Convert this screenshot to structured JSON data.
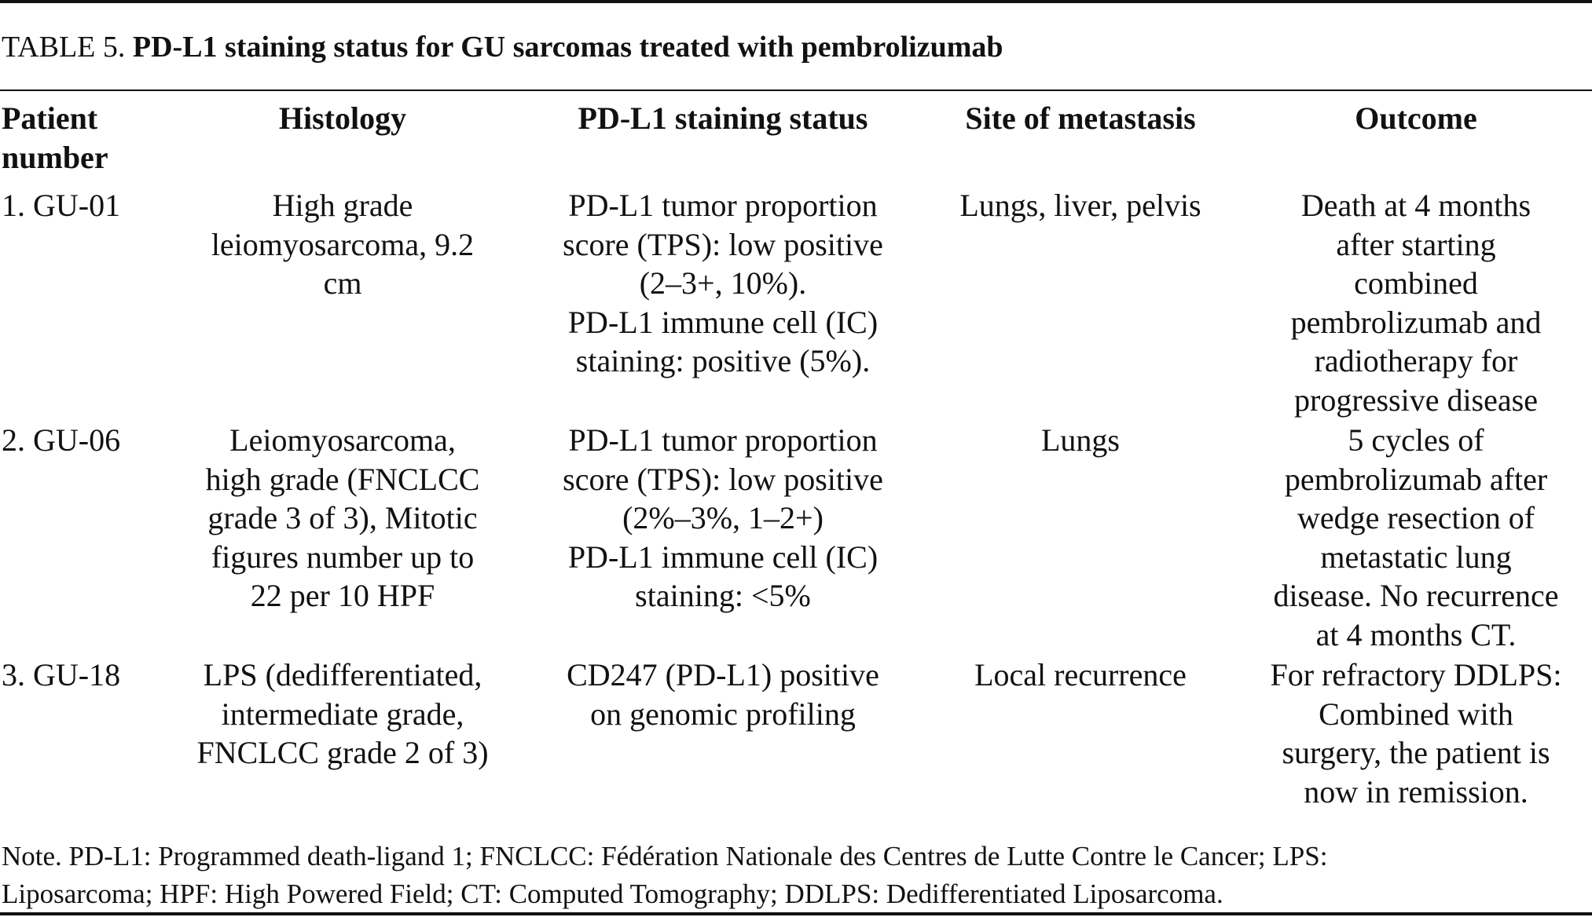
{
  "table_label": "TABLE 5.",
  "table_title": "PD-L1 staining status for GU sarcomas treated with pembrolizumab",
  "headers": {
    "patient_number": [
      "Patient",
      "number"
    ],
    "histology": "Histology",
    "pdl1_status": "PD-L1 staining status",
    "site_of_metastasis": "Site of metastasis",
    "outcome": "Outcome"
  },
  "rows": [
    {
      "patient_number": "1. GU-01",
      "histology": [
        "High grade",
        "leiomyosarcoma, 9.2",
        "cm"
      ],
      "pdl1_status": [
        "PD-L1 tumor proportion",
        "score (TPS): low positive",
        "(2–3+, 10%).",
        "PD-L1 immune cell (IC)",
        "staining: positive (5%)."
      ],
      "site_of_metastasis": "Lungs, liver, pelvis",
      "outcome": [
        "Death at 4 months",
        "after starting",
        "combined",
        "pembrolizumab and",
        "radiotherapy for",
        "progressive disease"
      ]
    },
    {
      "patient_number": "2. GU-06",
      "histology": [
        "Leiomyosarcoma,",
        "high grade (FNCLCC",
        "grade 3 of 3), Mitotic",
        "figures number up to",
        "22 per 10 HPF"
      ],
      "pdl1_status": [
        "PD-L1 tumor proportion",
        "score (TPS): low positive",
        "(2%–3%, 1–2+)",
        "PD-L1 immune cell (IC)",
        "staining: <5%"
      ],
      "site_of_metastasis": "Lungs",
      "outcome": [
        "5 cycles of",
        "pembrolizumab after",
        "wedge resection of",
        "metastatic lung",
        "disease. No recurrence",
        "at 4 months CT."
      ]
    },
    {
      "patient_number": "3. GU-18",
      "histology": [
        "LPS (dedifferentiated,",
        "intermediate grade,",
        "FNCLCC grade 2 of 3)"
      ],
      "pdl1_status": [
        "CD247 (PD-L1) positive",
        "on genomic profiling"
      ],
      "site_of_metastasis": "Local recurrence",
      "outcome": [
        "For refractory DDLPS:",
        "Combined with",
        "surgery, the patient is",
        "now in remission."
      ]
    }
  ],
  "note": [
    "Note. PD-L1: Programmed death-ligand 1; FNCLCC: Fédération Nationale des Centres de Lutte Contre le Cancer; LPS:",
    "Liposarcoma; HPF: High Powered Field; CT: Computed Tomography; DDLPS: Dedifferentiated Liposarcoma."
  ]
}
